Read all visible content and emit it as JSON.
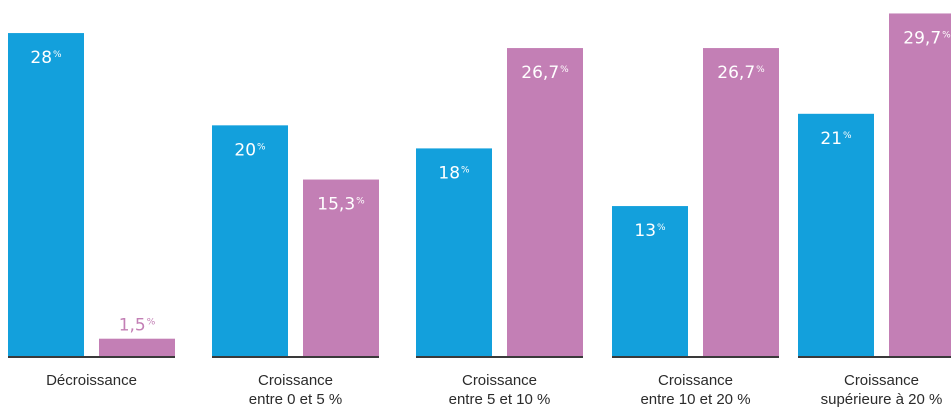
{
  "colors": {
    "series_a": "#13a0dc",
    "series_b": "#c37fb5",
    "baseline": "#3a3a3a"
  },
  "chart_data": {
    "type": "bar",
    "title": "",
    "xlabel": "",
    "ylabel": "",
    "ylim": [
      0,
      30
    ],
    "grid": false,
    "legend": "none",
    "categories": [
      [
        "Décroissance"
      ],
      [
        "Croissance",
        "entre 0 et 5 %"
      ],
      [
        "Croissance",
        "entre 5 et 10 %"
      ],
      [
        "Croissance",
        "entre 10 et 20 %"
      ],
      [
        "Croissance",
        "supérieure à 20 %"
      ]
    ],
    "series": [
      {
        "values": [
          28,
          20,
          18,
          13,
          21
        ],
        "labels": [
          "28",
          "20",
          "18",
          "13",
          "21"
        ],
        "color": "#13a0dc"
      },
      {
        "values": [
          1.5,
          15.3,
          26.7,
          26.7,
          29.7
        ],
        "labels": [
          "1,5",
          "15,3",
          "26,7",
          "26,7",
          "29,7"
        ],
        "color": "#c37fb5"
      }
    ],
    "unit_label": "%"
  }
}
